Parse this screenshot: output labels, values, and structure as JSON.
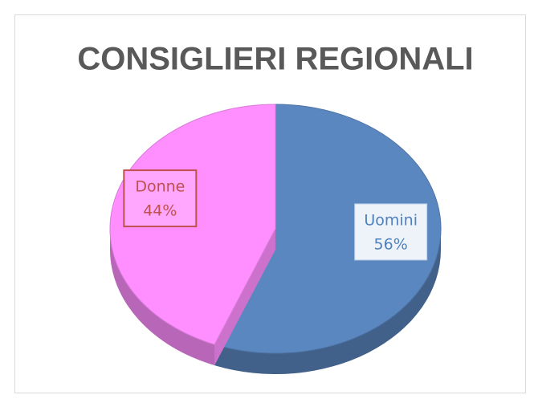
{
  "chart_data": {
    "type": "pie",
    "title": "CONSIGLIERI REGIONALI",
    "categories": [
      "Uomini",
      "Donne"
    ],
    "values": [
      56,
      44
    ],
    "value_labels": [
      "56%",
      "44%"
    ],
    "colors": [
      "#5b87c0",
      "#ff8fff"
    ]
  }
}
